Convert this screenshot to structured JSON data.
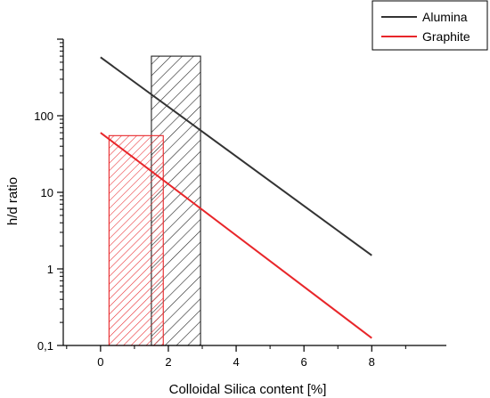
{
  "chart_data": {
    "type": "line",
    "title": "",
    "xlabel": "Colloidal Silica content [%]",
    "ylabel": "h/d ratio",
    "xlim": [
      -1.1,
      10.2
    ],
    "ylim": [
      0.1,
      1000
    ],
    "yscale": "log",
    "grid": false,
    "legend_position": "top-right",
    "x_ticks": [
      0,
      2,
      4,
      6,
      8
    ],
    "x_tick_labels": [
      "0",
      "2",
      "4",
      "6",
      "8"
    ],
    "y_ticks": [
      0.1,
      1,
      10,
      100
    ],
    "y_tick_labels": [
      "0,1",
      "1",
      "10",
      "100"
    ],
    "series": [
      {
        "name": "Alumina",
        "color": "#333333",
        "x": [
          0,
          8
        ],
        "y": [
          580,
          1.5
        ]
      },
      {
        "name": "Graphite",
        "color": "#e8262a",
        "x": [
          0,
          8
        ],
        "y": [
          60,
          0.125
        ]
      }
    ],
    "shaded_ranges": [
      {
        "series": "Alumina",
        "color": "#222222",
        "x": [
          1.5,
          2.95
        ],
        "y_top": 600,
        "hatch": "forward"
      },
      {
        "series": "Graphite",
        "color": "#e8262a",
        "x": [
          0.25,
          1.85
        ],
        "y_top": 55,
        "hatch": "backward"
      }
    ]
  }
}
